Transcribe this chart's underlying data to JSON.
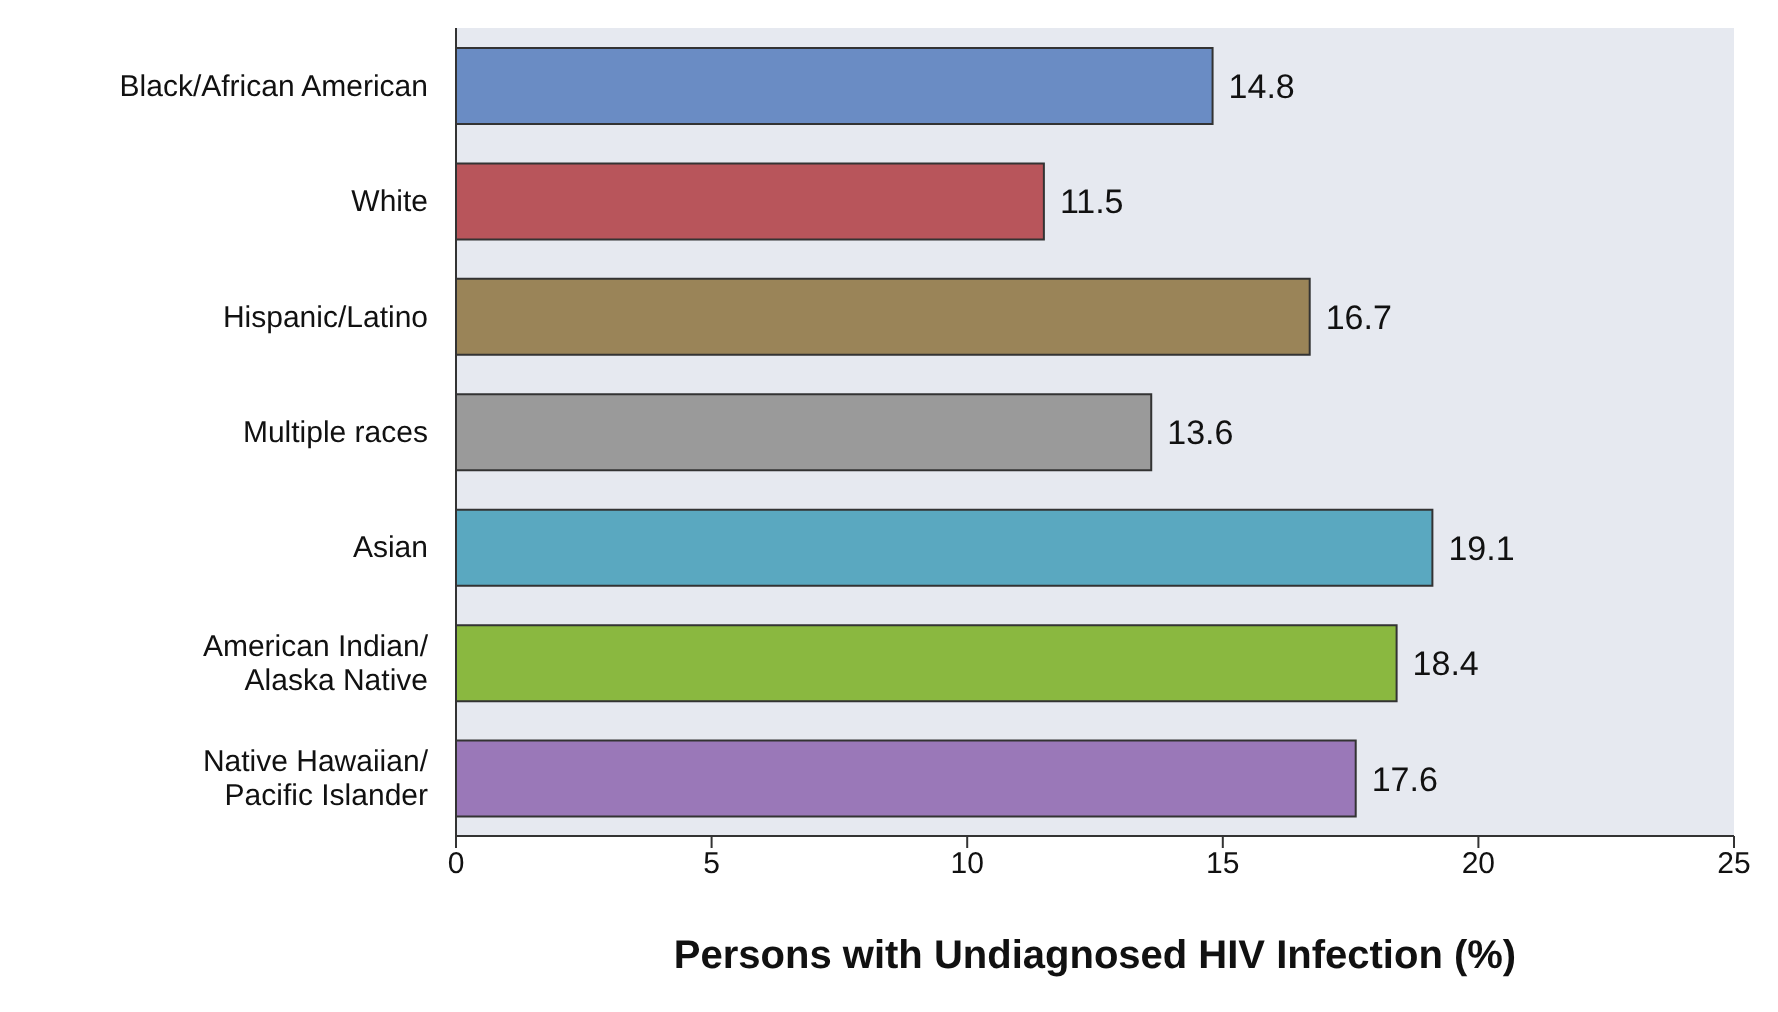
{
  "chart_data": {
    "type": "bar",
    "orientation": "horizontal",
    "xlabel": "Persons with Undiagnosed HIV Infection (%)",
    "categories": [
      "Black/African American",
      "White",
      "Hispanic/Latino",
      "Multiple races",
      "Asian",
      "American Indian/\nAlaska Native",
      "Native Hawaiian/\nPacific Islander"
    ],
    "values": [
      14.8,
      11.5,
      16.7,
      13.6,
      19.1,
      18.4,
      17.6
    ],
    "colors": [
      "#6a8cc4",
      "#b8555b",
      "#9a8458",
      "#9a9a9a",
      "#5aa8c0",
      "#8ab840",
      "#9a78b8"
    ],
    "xlim": [
      0,
      25
    ],
    "xticks": [
      0,
      5,
      10,
      15,
      20,
      25
    ],
    "grid": false,
    "legend": false,
    "data_labels": true
  }
}
